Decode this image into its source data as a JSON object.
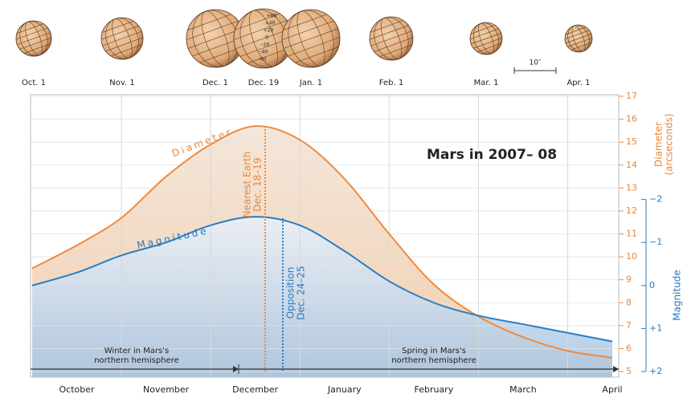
{
  "chart_data": {
    "type": "line",
    "title": "Mars in 2007– 08",
    "categories": [
      null,
      "October",
      null,
      "November",
      null,
      "December",
      null,
      "January",
      null,
      "February",
      null,
      "March",
      null,
      "April"
    ],
    "series": [
      {
        "name": "Diameter",
        "color": "#f08a3c",
        "values": [
          9.5,
          10.5,
          11.7,
          13.5,
          14.9,
          15.7,
          15.1,
          13.4,
          11.0,
          8.8,
          7.4,
          6.5,
          5.9,
          5.6
        ]
      },
      {
        "name": "Magnitude",
        "color": "#2a7ec3",
        "axis": "y2",
        "values": [
          0.0,
          -0.3,
          -0.7,
          -1.0,
          -1.4,
          -1.6,
          -1.4,
          -0.8,
          -0.1,
          0.4,
          0.7,
          0.9,
          1.1,
          1.3
        ]
      }
    ],
    "ylim": [
      5,
      17
    ],
    "yticks": [
      5,
      6,
      7,
      8,
      9,
      10,
      11,
      12,
      13,
      14,
      15,
      16,
      17
    ],
    "y_label": "Diameter",
    "y_label_sub": "(arcseconds)",
    "y2lim": [
      2,
      -4.4
    ],
    "y2ticks": [
      {
        "value": -2,
        "label": "−2"
      },
      {
        "value": -1,
        "label": "−1"
      },
      0,
      {
        "value": 1,
        "label": "+1"
      },
      {
        "value": 2,
        "label": "+2"
      }
    ],
    "y2_label": "Magnitude",
    "grid": true,
    "annotations": {
      "nearest": [
        "Nearest Earth",
        "Dec. 18–19"
      ],
      "opposition": [
        "Opposition",
        "Dec. 24–25"
      ],
      "winter": [
        "Winter in Mars's",
        "northern hemisphere"
      ],
      "spring": [
        "Spring in Mars's",
        "northern hemisphere"
      ]
    },
    "globes": [
      "Oct. 1",
      "Nov. 1",
      "Dec. 1",
      "Dec. 19",
      "Jan. 1",
      "Feb. 1",
      "Mar. 1",
      "Apr. 1"
    ],
    "globe_latitudes": [
      "+60",
      "+40",
      "+20",
      "0",
      "–20",
      "–40",
      "–60"
    ],
    "scale_bar": "10″"
  }
}
